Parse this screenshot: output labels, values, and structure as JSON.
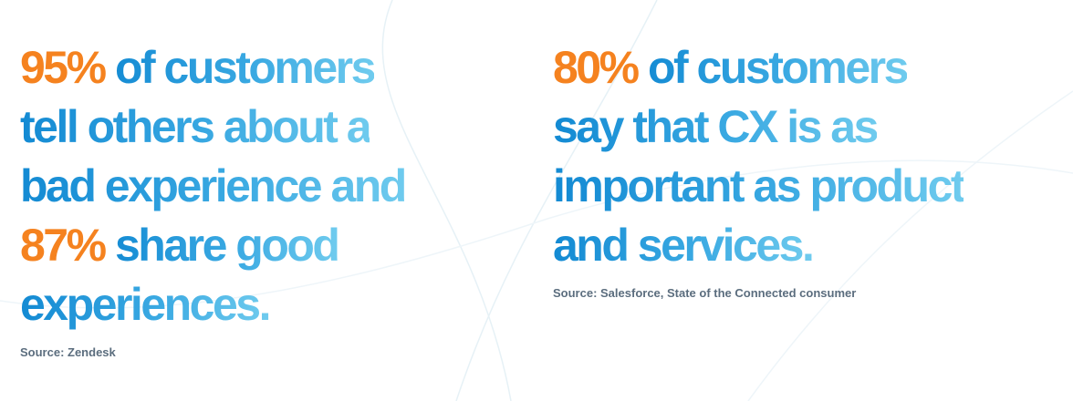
{
  "stats": [
    {
      "lines": [
        [
          {
            "text": "95%",
            "color": "#f5821f"
          },
          {
            "text": " of customers"
          }
        ],
        [
          {
            "text": "tell others about a"
          }
        ],
        [
          {
            "text": "bad experience and"
          }
        ],
        [
          {
            "text": "87%",
            "color": "#f5821f"
          },
          {
            "text": " share good"
          }
        ],
        [
          {
            "text": "experiences."
          }
        ]
      ],
      "source": "Source: Zendesk"
    },
    {
      "lines": [
        [
          {
            "text": "80%",
            "color": "#f5821f"
          },
          {
            "text": " of customers"
          }
        ],
        [
          {
            "text": "say that CX is as"
          }
        ],
        [
          {
            "text": "important as product"
          }
        ],
        [
          {
            "text": "and services."
          }
        ]
      ],
      "source": "Source: Salesforce, State of the Connected consumer"
    }
  ]
}
